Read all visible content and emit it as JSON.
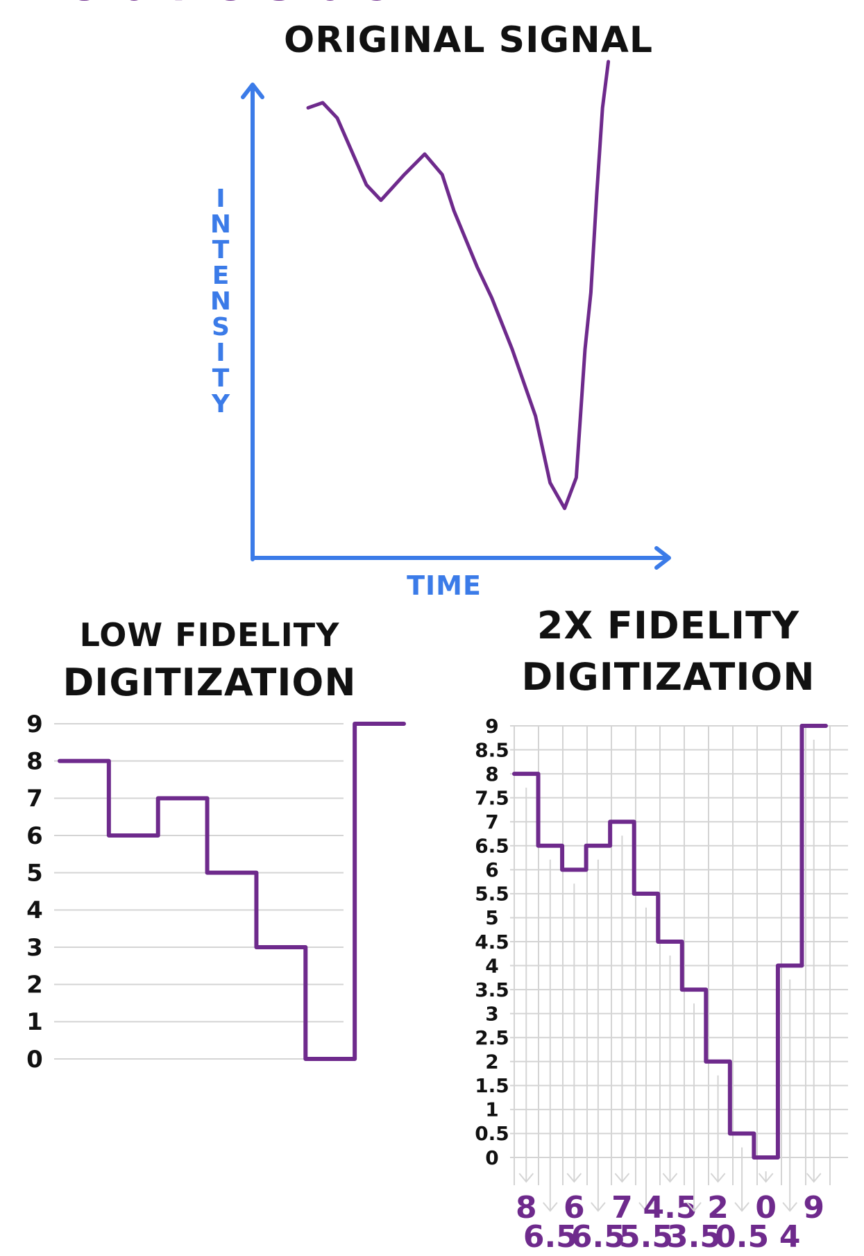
{
  "colors": {
    "axis": "#3b7be8",
    "signal": "#6e2a8c",
    "grid": "#d4d4d4",
    "text": "#111111"
  },
  "chart_data": [
    {
      "type": "line",
      "title": "Original Signal",
      "xlabel": "Time",
      "ylabel": "Intensity",
      "description_points": [
        [
          0,
          7.9
        ],
        [
          0.5,
          8.0
        ],
        [
          1,
          7.7
        ],
        [
          2,
          6.4
        ],
        [
          2.5,
          6.1
        ],
        [
          3.3,
          6.6
        ],
        [
          4,
          7.0
        ],
        [
          4.6,
          6.6
        ],
        [
          5,
          5.9
        ],
        [
          5.8,
          4.8
        ],
        [
          6.3,
          4.2
        ],
        [
          7,
          3.2
        ],
        [
          7.8,
          1.9
        ],
        [
          8.3,
          0.6
        ],
        [
          8.8,
          0.1
        ],
        [
          9.2,
          0.7
        ],
        [
          9.5,
          3.2
        ],
        [
          9.7,
          4.3
        ],
        [
          9.9,
          6.2
        ],
        [
          10.1,
          7.9
        ],
        [
          10.3,
          8.8
        ]
      ]
    },
    {
      "type": "line",
      "step": true,
      "title": "Low Fidelity Digitization",
      "yticks": [
        "0",
        "1",
        "2",
        "3",
        "4",
        "5",
        "6",
        "7",
        "8",
        "9"
      ],
      "ylim": [
        0,
        9
      ],
      "values": [
        8,
        6,
        7,
        5,
        3,
        0,
        9
      ],
      "labels": [
        "8",
        "6",
        "7",
        "5",
        "3",
        "0",
        "9"
      ]
    },
    {
      "type": "line",
      "step": true,
      "title": "2x Fidelity Digitization",
      "yticks": [
        "0",
        "0.5",
        "1",
        "1.5",
        "2",
        "2.5",
        "3",
        "3.5",
        "4",
        "4.5",
        "5",
        "5.5",
        "6",
        "6.5",
        "7",
        "7.5",
        "8",
        "8.5",
        "9"
      ],
      "ylim": [
        0,
        9
      ],
      "values": [
        8,
        6.5,
        6,
        6.5,
        7,
        5.5,
        4.5,
        3.5,
        2,
        0.5,
        0,
        4,
        9
      ],
      "labels": [
        "8",
        "6.5",
        "6",
        "6.5",
        "7",
        "5.5",
        "4.5",
        "3.5",
        "2",
        "0.5",
        "0",
        "4",
        "9"
      ]
    }
  ],
  "titles": {
    "top": "Original Signal",
    "ylabel": "Intensity",
    "xlabel": "Time",
    "low1": "Low Fidelity",
    "low2": "Digitization",
    "hi1": "2x Fidelity",
    "hi2": "Digitization"
  }
}
